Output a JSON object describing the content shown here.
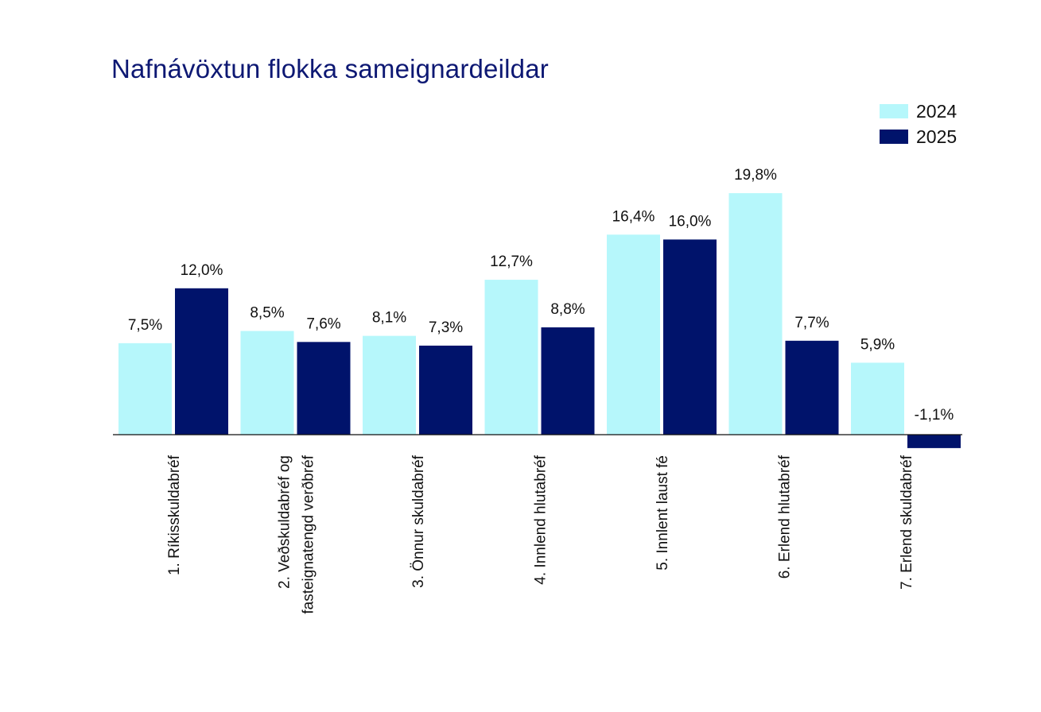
{
  "colors": {
    "title": "#0d1873",
    "series_2024": "#b6f7fb",
    "series_2025": "#00136b",
    "axis": "#111111",
    "text": "#111111"
  },
  "chart_data": {
    "type": "bar",
    "title": "Nafnávöxtun flokka sameignardeildar",
    "xlabel": "",
    "ylabel": "",
    "ylim": [
      -1.1,
      19.8
    ],
    "grid": false,
    "legend_position": "top-right",
    "categories": [
      [
        "1. Ríkisskuldabréf"
      ],
      [
        "2. Veðskuldabréf og",
        "fasteignatengd verðbréf"
      ],
      [
        "3. Önnur skuldabréf"
      ],
      [
        "4. Innlend hlutabréf"
      ],
      [
        "5. Innlent laust fé"
      ],
      [
        "6. Erlend hlutabréf"
      ],
      [
        "7. Erlend skuldabréf"
      ]
    ],
    "series": [
      {
        "name": "2024",
        "color": "#b6f7fb",
        "values": [
          7.5,
          8.5,
          8.1,
          12.7,
          16.4,
          19.8,
          5.9
        ],
        "labels": [
          "7,5%",
          "8,5%",
          "8,1%",
          "12,7%",
          "16,4%",
          "19,8%",
          "5,9%"
        ]
      },
      {
        "name": "2025",
        "color": "#00136b",
        "values": [
          12.0,
          7.6,
          7.3,
          8.8,
          16.0,
          7.7,
          -1.1
        ],
        "labels": [
          "12,0%",
          "7,6%",
          "7,3%",
          "8,8%",
          "16,0%",
          "7,7%",
          "-1,1%"
        ]
      }
    ]
  }
}
